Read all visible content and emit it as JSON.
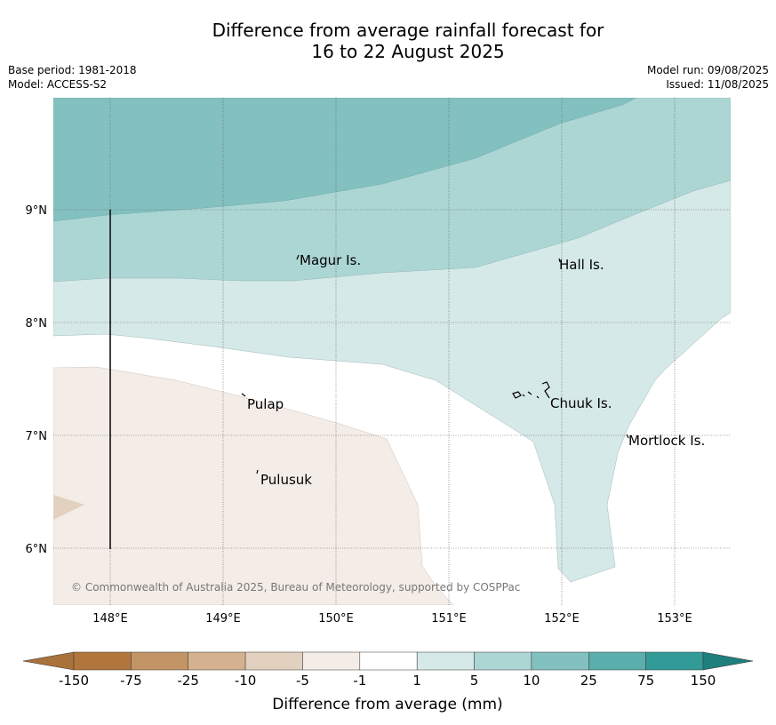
{
  "title": {
    "line1": "Difference from average rainfall forecast for",
    "line2": "16 to 22 August 2025"
  },
  "meta": {
    "base_period": "Base period: 1981-2018",
    "model": "Model: ACCESS-S2",
    "model_run": "Model run: 09/08/2025",
    "issued": "Issued: 11/08/2025"
  },
  "map": {
    "lon_ticks": [
      "148°E",
      "149°E",
      "150°E",
      "151°E",
      "152°E",
      "153°E"
    ],
    "lat_ticks": [
      "9°N",
      "8°N",
      "7°N",
      "6°N"
    ],
    "places": {
      "magur": "Magur Is.",
      "hall": "Hall Is.",
      "pulap": "Pulap",
      "chuuk": "Chuuk Is.",
      "mortlock": "Mortlock Is.",
      "pulusuk": "Pulusuk"
    },
    "copyright": "© Commonwealth of Australia 2025, Bureau of Meteorology, supported by COSPPac"
  },
  "colorbar": {
    "ticks": [
      "-150",
      "-75",
      "-25",
      "-10",
      "-5",
      "-1",
      "1",
      "5",
      "10",
      "25",
      "75",
      "150"
    ],
    "colors": [
      "#a9723b",
      "#b2763d",
      "#c39465",
      "#d4b28f",
      "#e3d1c0",
      "#f4ece7",
      "#ffffff",
      "#d5e9e8",
      "#acd6d4",
      "#83c1c0",
      "#5aaeac",
      "#329b98",
      "#1f7f7c"
    ],
    "label": "Difference from average (mm)"
  }
}
